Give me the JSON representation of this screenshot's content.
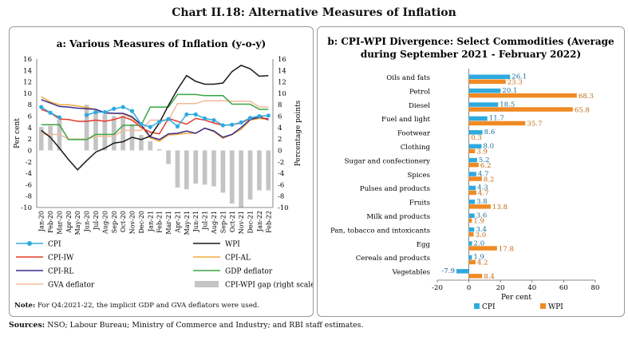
{
  "title": "Chart II.18: Alternative Measures of Inflation",
  "footnote": {
    "label": "Note:",
    "text": "For Q4:2021-22, the implicit GDP and GVA deflators were used."
  },
  "sources": {
    "label": "Sources:",
    "text": "NSO; Labour Bureau; Ministry of Commerce and Industry; and RBI staff estimates."
  },
  "colors": {
    "cpi": "#2eaadf",
    "wpi": "#1a1a1a",
    "cpi_iw": "#e03a2a",
    "cpi_al": "#f0ac3c",
    "cpi_rl": "#3b2c8c",
    "gdp": "#3aa640",
    "gva": "#f2b89a",
    "gap": "#c4c4c4",
    "orange": "#f08a24"
  },
  "chart_data": [
    {
      "type": "line",
      "title": "a: Various Measures of Inflation (y-o-y)",
      "ylabel": "Per cent",
      "y2label": "Percentage points",
      "ylim": [
        -10,
        16
      ],
      "y2lim": [
        -10,
        16
      ],
      "yticks": [
        "-10",
        "-8",
        "-6",
        "-4",
        "-2",
        "0",
        "2",
        "4",
        "6",
        "8",
        "10",
        "12",
        "14",
        "16"
      ],
      "categories": [
        "Jan-20",
        "Feb-20",
        "Mar-20",
        "Apr-20",
        "May-20",
        "Jun-20",
        "Jul-20",
        "Aug-20",
        "Sep-20",
        "Oct-20",
        "Nov-20",
        "Dec-20",
        "Jan-21",
        "Feb-21",
        "Mar-21",
        "Apr-21",
        "May-21",
        "Jun-21",
        "Jul-21",
        "Aug-21",
        "Sep-21",
        "Oct-21",
        "Nov-21",
        "Dec-21",
        "Jan-22",
        "Feb-22"
      ],
      "series": [
        {
          "name": "CPI",
          "key": "cpi",
          "values": [
            7.6,
            6.6,
            5.8,
            null,
            null,
            6.2,
            6.7,
            6.7,
            7.3,
            7.6,
            6.9,
            4.6,
            4.1,
            5.0,
            5.5,
            4.2,
            6.3,
            6.3,
            5.6,
            5.3,
            4.4,
            4.5,
            4.9,
            5.7,
            6.0,
            6.1
          ]
        },
        {
          "name": "WPI",
          "key": "wpi",
          "values": [
            3.5,
            2.3,
            0.4,
            -1.6,
            -3.4,
            -1.8,
            -0.3,
            0.4,
            1.3,
            1.5,
            2.3,
            1.9,
            2.5,
            4.8,
            7.9,
            10.7,
            13.1,
            12.1,
            11.6,
            11.6,
            11.8,
            13.8,
            14.9,
            14.3,
            13.0,
            13.1
          ]
        },
        {
          "name": "CPI-IW",
          "key": "cpi_iw",
          "values": [
            7.2,
            6.6,
            5.5,
            5.4,
            5.1,
            5.1,
            5.3,
            5.1,
            5.4,
            5.9,
            5.3,
            4.0,
            3.2,
            2.9,
            5.6,
            5.1,
            4.6,
            5.6,
            5.3,
            4.8,
            4.4,
            4.5,
            4.8,
            5.6,
            6.0,
            5.3
          ]
        },
        {
          "name": "CPI-AL",
          "key": "cpi_al",
          "values": [
            9.4,
            8.5,
            8.0,
            8.0,
            7.8,
            7.5,
            7.2,
            6.5,
            6.5,
            6.4,
            5.7,
            4.3,
            2.2,
            1.6,
            2.7,
            2.8,
            3.0,
            3.0,
            3.9,
            3.3,
            2.1,
            2.8,
            3.7,
            5.3,
            5.6,
            5.4
          ]
        },
        {
          "name": "CPI-RL",
          "key": "cpi_rl",
          "values": [
            8.9,
            8.3,
            7.7,
            7.6,
            7.4,
            7.3,
            7.2,
            6.6,
            6.5,
            6.5,
            5.9,
            4.5,
            2.4,
            1.9,
            2.9,
            3.0,
            3.4,
            3.0,
            3.9,
            3.4,
            2.3,
            2.8,
            4.0,
            5.4,
            5.8,
            5.5
          ]
        },
        {
          "name": "GDP deflator",
          "key": "gdp",
          "values": [
            4.5,
            4.5,
            4.5,
            1.9,
            1.9,
            1.9,
            2.8,
            2.8,
            2.8,
            4.4,
            4.4,
            4.4,
            7.6,
            7.6,
            7.6,
            9.8,
            9.8,
            9.8,
            9.6,
            9.6,
            9.6,
            8.1,
            8.1,
            8.1,
            7.2,
            7.2
          ]
        },
        {
          "name": "GVA deflator",
          "key": "gva",
          "values": [
            2.8,
            2.8,
            2.8,
            2.0,
            2.0,
            2.0,
            2.5,
            2.5,
            2.5,
            3.5,
            3.5,
            3.5,
            5.3,
            5.3,
            5.3,
            8.2,
            8.2,
            8.2,
            8.7,
            8.7,
            8.7,
            8.6,
            8.6,
            8.6,
            7.6,
            7.6
          ]
        }
      ],
      "bars": {
        "name": "CPI-WPI gap (right scale)",
        "key": "gap",
        "values": [
          4.1,
          4.3,
          5.4,
          null,
          null,
          8.0,
          7.0,
          6.3,
          6.0,
          6.1,
          4.6,
          2.7,
          1.6,
          0.2,
          -2.4,
          -6.5,
          -6.8,
          -5.8,
          -6.0,
          -6.3,
          -7.4,
          -9.3,
          -10.0,
          -8.6,
          -7.0,
          -7.0
        ]
      },
      "legend": [
        {
          "key": "cpi",
          "label": "CPI"
        },
        {
          "key": "wpi",
          "label": "WPI"
        },
        {
          "key": "cpi_iw",
          "label": "CPI-IW"
        },
        {
          "key": "cpi_al",
          "label": "CPI-AL"
        },
        {
          "key": "cpi_rl",
          "label": "CPI-RL"
        },
        {
          "key": "gdp",
          "label": "GDP deflator"
        },
        {
          "key": "gva",
          "label": "GVA deflator"
        },
        {
          "key": "gap",
          "label": "CPI-WPI gap (right scale)"
        }
      ]
    },
    {
      "type": "bar",
      "orientation": "horizontal",
      "title_line1": "b: CPI-WPI Divergence: Select Commodities (Average",
      "title_line2": "during September 2021 - February 2022)",
      "xlabel": "Per cent",
      "xlim": [
        -20,
        80
      ],
      "xticks": [
        "-20",
        "0",
        "20",
        "40",
        "60",
        "80"
      ],
      "categories": [
        "Oils and fats",
        "Petrol",
        "Diesel",
        "Fuel and light",
        "Footwear",
        "Clothing",
        "Sugar and confectionery",
        "Spices",
        "Pulses and products",
        "Fruits",
        "Milk and products",
        "Pan, tobacco and intoxicants",
        "Egg",
        "Cereals and products",
        "Vegetables"
      ],
      "series": [
        {
          "name": "CPI",
          "key": "cpi",
          "values": [
            26.1,
            20.1,
            18.5,
            11.7,
            8.6,
            8.0,
            5.2,
            4.7,
            4.3,
            3.8,
            3.6,
            3.4,
            2.0,
            1.9,
            -7.9
          ],
          "labels": [
            "26.1",
            "20.1",
            "18.5",
            "11.7",
            "8.6",
            "8.0",
            "5.2",
            "4.7",
            "4.3",
            "3.8",
            "3.6",
            "3.4",
            "2.0",
            "1.9",
            "-7.9"
          ]
        },
        {
          "name": "WPI",
          "key": "wpi",
          "values": [
            23.3,
            68.3,
            65.8,
            35.7,
            0.3,
            3.9,
            6.2,
            8.2,
            4.7,
            13.8,
            1.9,
            3.0,
            17.8,
            4.2,
            8.4
          ],
          "labels": [
            "23.3",
            "68.3",
            "65.8",
            "35.7",
            "0.3",
            "3.9",
            "6.2",
            "8.2",
            "4.7",
            "13.8",
            "1.9",
            "3.0",
            "17.8",
            "4.2",
            "8.4"
          ]
        }
      ],
      "legend": [
        {
          "key": "cpi",
          "label": "CPI"
        },
        {
          "key": "wpi",
          "label": "WPI"
        }
      ]
    }
  ]
}
